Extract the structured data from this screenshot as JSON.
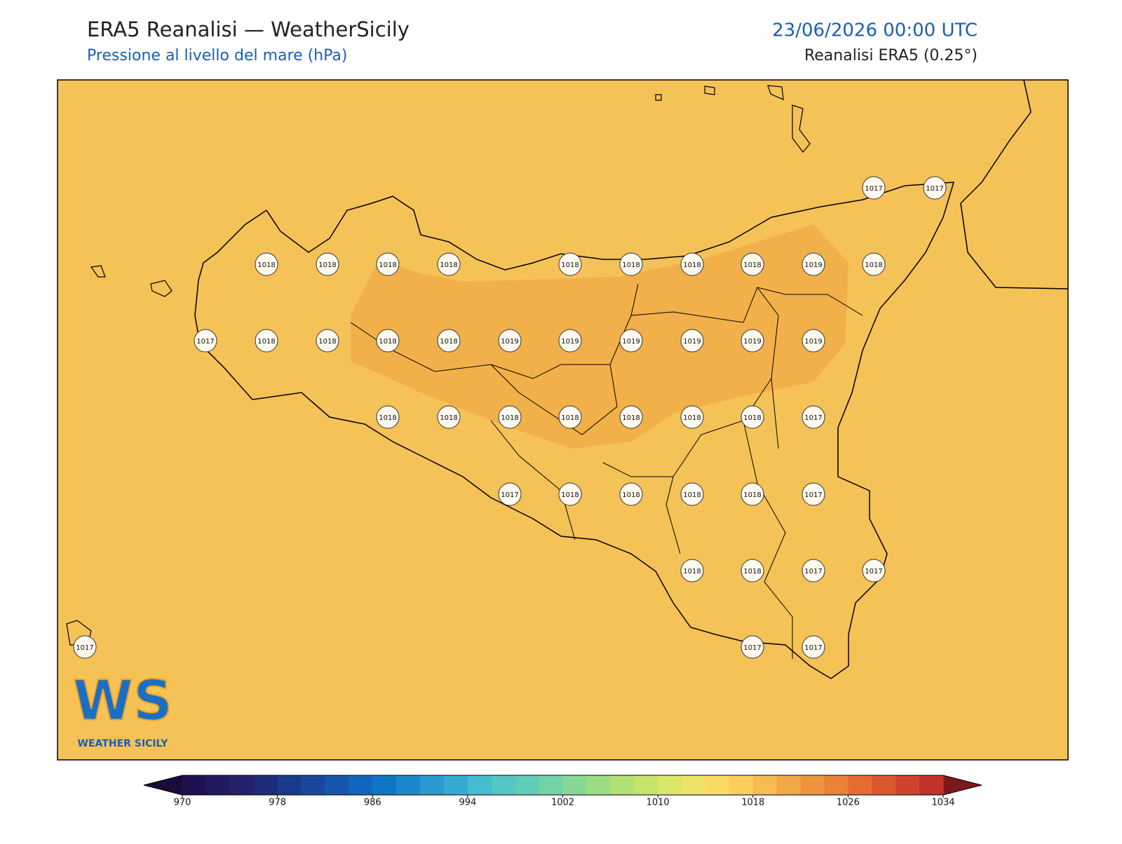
{
  "header": {
    "title": "ERA5 Reanalisi — WeatherSicily",
    "subtitle": "Pressione al livello del mare (hPa)",
    "date": "23/06/2026 00:00 UTC",
    "source": "Reanalisi ERA5 (0.25°)"
  },
  "map": {
    "background": "#f5c257",
    "high_region_color": "#f2b04a"
  },
  "stations": [
    1017,
    1017,
    1018,
    1018,
    1018,
    1018,
    1018,
    1018,
    1018,
    1018,
    1019,
    1018,
    1017,
    1018,
    1018,
    1018,
    1018,
    1019,
    1019,
    1019,
    1019,
    1019,
    1019,
    1018,
    1018,
    1018,
    1018,
    1018,
    1018,
    1018,
    1017,
    1017,
    1018,
    1018,
    1018,
    1018,
    1017,
    1018,
    1018,
    1017,
    1017,
    1017,
    1017,
    1017
  ],
  "logo": {
    "mark": "WS",
    "name": "WEATHER SICILY"
  },
  "colorbar": {
    "range": [
      970,
      1034
    ],
    "ticks": [
      970,
      978,
      986,
      994,
      1002,
      1010,
      1018,
      1026,
      1034
    ],
    "colors": [
      "#1f1050",
      "#221a5e",
      "#23226b",
      "#1f2c7a",
      "#1c3a8c",
      "#1a479d",
      "#1656ad",
      "#1366bd",
      "#0f76c6",
      "#1c88cc",
      "#2a9ad0",
      "#36abd2",
      "#45bccf",
      "#54c6c4",
      "#60cdb6",
      "#71d3a6",
      "#87d896",
      "#9cdc85",
      "#b2e074",
      "#c6e36a",
      "#d9e66a",
      "#ebe468",
      "#f9db63",
      "#fbcd5c",
      "#f7bb52",
      "#f3a847",
      "#f0953f",
      "#ec8138",
      "#e56c32",
      "#dc582f",
      "#d0442d",
      "#c1322a"
    ],
    "under_color": "#1a0b3d",
    "over_color": "#7a1a1a"
  }
}
